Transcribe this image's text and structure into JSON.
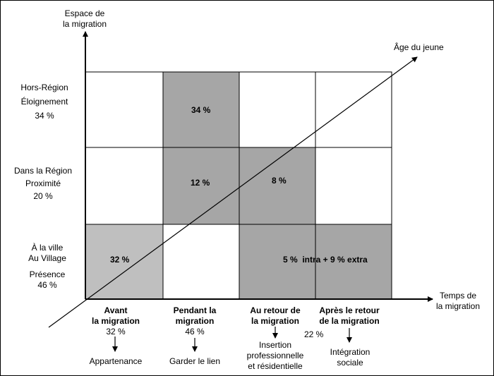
{
  "y_axis": {
    "title_line1": "Espace de",
    "title_line2": "la migration"
  },
  "x_axis": {
    "title_line1": "Temps de",
    "title_line2": "la migration"
  },
  "diagonal_label": "Âge du jeune",
  "rows": [
    {
      "line1": "Hors-Région",
      "line2": "Éloignement",
      "value": "34 %"
    },
    {
      "line1": "Dans la Région",
      "line2": "Proximité",
      "value": "20 %"
    },
    {
      "line1": "À la ville",
      "line2": "Au Village",
      "line3": "Présence",
      "value": "46 %"
    }
  ],
  "columns": [
    {
      "line1": "Avant",
      "line2": "la migration",
      "value": "32 %",
      "outcome": "Appartenance"
    },
    {
      "line1": "Pendant la",
      "line2": "migration",
      "value": "46 %",
      "outcome": "Garder le lien"
    },
    {
      "line1": "Au retour de",
      "line2": "la migration",
      "value": "22 %",
      "outcome_line1": "Insertion",
      "outcome_line2": "professionnelle",
      "outcome_line3": "et résidentielle"
    },
    {
      "line1": "Après le retour",
      "line2": "de la migration",
      "outcome_line1": "Intégration",
      "outcome_line2": "sociale"
    }
  ],
  "cells": {
    "hors_pendant": "34 %",
    "region_pendant": "12 %",
    "region_retour": "8 %",
    "ville_avant": "32 %",
    "ville_retour_apres": "5 %  intra + 9 % extra"
  },
  "colors": {
    "dark_shade": "#a6a6a6",
    "light_shade": "#bfbfbf",
    "line": "#000000"
  }
}
